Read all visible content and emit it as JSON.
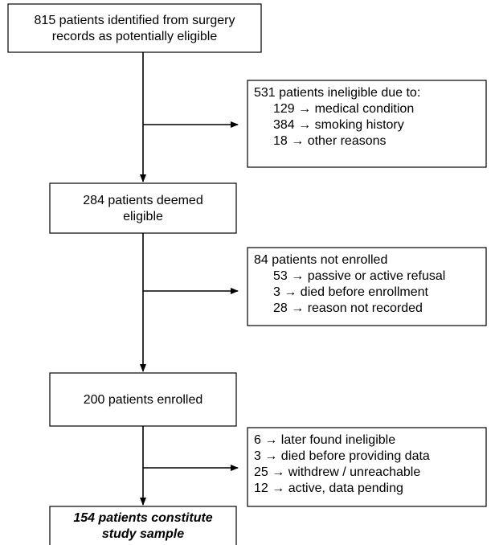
{
  "main_boxes": [
    {
      "lines": [
        "815 patients identified from surgery",
        "records as potentially eligible"
      ]
    },
    {
      "lines": [
        "284 patients deemed",
        "eligible"
      ]
    },
    {
      "lines": [
        "200 patients enrolled"
      ]
    },
    {
      "lines": [
        "154 patients constitute",
        "study sample"
      ]
    }
  ],
  "exclusion_boxes": [
    {
      "heading": "531 patients ineligible due to:",
      "items": [
        "129 → medical condition",
        "384 → smoking history",
        "18 → other reasons"
      ]
    },
    {
      "heading": "84 patients not enrolled",
      "items": [
        "53 → passive or active refusal",
        "3 → died before enrollment",
        "28 → reason not recorded"
      ]
    },
    {
      "items": [
        "6 → later found ineligible",
        "3 → died before providing data",
        "25 → withdrew / unreachable",
        "12 → active, data pending"
      ]
    }
  ]
}
